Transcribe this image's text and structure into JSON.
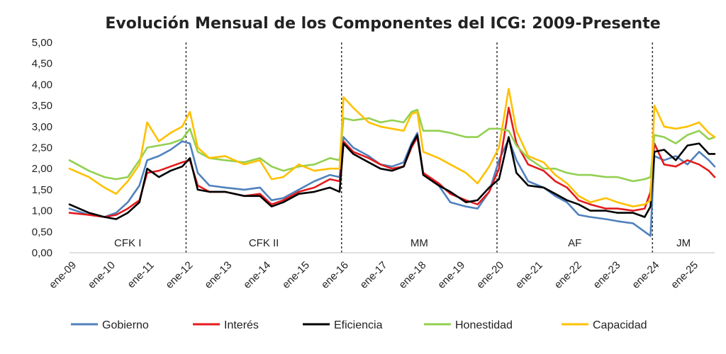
{
  "chart_data": {
    "type": "line",
    "title": "Evolución Mensual de los Componentes del ICG: 2009-Presente",
    "xlabel": "",
    "ylabel": "",
    "ylim": [
      0,
      5
    ],
    "y_ticks": [
      "0,00",
      "0,50",
      "1,00",
      "1,50",
      "2,00",
      "2,50",
      "3,00",
      "3,50",
      "4,00",
      "4,50",
      "5,00"
    ],
    "x_ticks": [
      "ene-09",
      "ene-10",
      "ene-11",
      "ene-12",
      "ene-13",
      "ene-14",
      "ene-15",
      "ene-16",
      "ene-17",
      "ene-18",
      "ene-19",
      "ene-20",
      "ene-21",
      "ene-22",
      "ene-23",
      "ene-24",
      "ene-25"
    ],
    "x_range": [
      2009.0,
      2025.6
    ],
    "grid": false,
    "legend": "bottom",
    "period_dividers": [
      2012.0,
      2016.0,
      2020.0,
      2024.0
    ],
    "periods": [
      {
        "label": "CFK I",
        "center": 2010.5
      },
      {
        "label": "CFK II",
        "center": 2014.0
      },
      {
        "label": "MM",
        "center": 2018.0
      },
      {
        "label": "AF",
        "center": 2022.0
      },
      {
        "label": "JM",
        "center": 2024.8
      }
    ],
    "series": [
      {
        "name": "Gobierno",
        "color": "#4f81bd",
        "points": [
          [
            2009.0,
            1.05
          ],
          [
            2009.5,
            0.9
          ],
          [
            2009.9,
            0.85
          ],
          [
            2010.2,
            0.95
          ],
          [
            2010.5,
            1.2
          ],
          [
            2010.8,
            1.6
          ],
          [
            2011.0,
            2.2
          ],
          [
            2011.3,
            2.3
          ],
          [
            2011.6,
            2.45
          ],
          [
            2011.9,
            2.65
          ],
          [
            2012.1,
            2.6
          ],
          [
            2012.3,
            1.9
          ],
          [
            2012.6,
            1.6
          ],
          [
            2013.0,
            1.55
          ],
          [
            2013.5,
            1.5
          ],
          [
            2013.9,
            1.55
          ],
          [
            2014.2,
            1.25
          ],
          [
            2014.5,
            1.3
          ],
          [
            2014.9,
            1.5
          ],
          [
            2015.3,
            1.7
          ],
          [
            2015.7,
            1.85
          ],
          [
            2015.95,
            1.8
          ],
          [
            2016.05,
            2.75
          ],
          [
            2016.3,
            2.5
          ],
          [
            2016.7,
            2.3
          ],
          [
            2017.0,
            2.1
          ],
          [
            2017.3,
            2.05
          ],
          [
            2017.6,
            2.15
          ],
          [
            2017.8,
            2.6
          ],
          [
            2017.95,
            2.85
          ],
          [
            2018.1,
            1.9
          ],
          [
            2018.5,
            1.6
          ],
          [
            2018.8,
            1.2
          ],
          [
            2019.2,
            1.1
          ],
          [
            2019.5,
            1.05
          ],
          [
            2019.8,
            1.45
          ],
          [
            2020.05,
            2.2
          ],
          [
            2020.3,
            2.7
          ],
          [
            2020.5,
            2.2
          ],
          [
            2020.8,
            1.7
          ],
          [
            2021.2,
            1.55
          ],
          [
            2021.5,
            1.35
          ],
          [
            2021.8,
            1.2
          ],
          [
            2022.1,
            0.9
          ],
          [
            2022.4,
            0.85
          ],
          [
            2022.8,
            0.8
          ],
          [
            2023.1,
            0.75
          ],
          [
            2023.5,
            0.7
          ],
          [
            2023.8,
            0.5
          ],
          [
            2023.95,
            0.4
          ],
          [
            2024.05,
            2.3
          ],
          [
            2024.3,
            2.2
          ],
          [
            2024.6,
            2.3
          ],
          [
            2024.9,
            2.1
          ],
          [
            2025.2,
            2.4
          ],
          [
            2025.45,
            2.2
          ],
          [
            2025.6,
            2.05
          ]
        ]
      },
      {
        "name": "Interés",
        "color": "#e41a1c",
        "points": [
          [
            2009.0,
            0.95
          ],
          [
            2009.5,
            0.9
          ],
          [
            2009.9,
            0.85
          ],
          [
            2010.2,
            0.9
          ],
          [
            2010.5,
            1.05
          ],
          [
            2010.8,
            1.25
          ],
          [
            2011.0,
            1.9
          ],
          [
            2011.3,
            1.95
          ],
          [
            2011.6,
            2.05
          ],
          [
            2011.9,
            2.15
          ],
          [
            2012.1,
            2.2
          ],
          [
            2012.3,
            1.6
          ],
          [
            2012.6,
            1.45
          ],
          [
            2013.0,
            1.45
          ],
          [
            2013.5,
            1.35
          ],
          [
            2013.9,
            1.4
          ],
          [
            2014.2,
            1.15
          ],
          [
            2014.5,
            1.25
          ],
          [
            2014.9,
            1.45
          ],
          [
            2015.3,
            1.55
          ],
          [
            2015.7,
            1.75
          ],
          [
            2015.95,
            1.7
          ],
          [
            2016.05,
            2.65
          ],
          [
            2016.3,
            2.4
          ],
          [
            2016.7,
            2.25
          ],
          [
            2017.0,
            2.1
          ],
          [
            2017.3,
            2.0
          ],
          [
            2017.6,
            2.05
          ],
          [
            2017.8,
            2.5
          ],
          [
            2017.95,
            2.75
          ],
          [
            2018.1,
            1.9
          ],
          [
            2018.5,
            1.65
          ],
          [
            2018.8,
            1.4
          ],
          [
            2019.2,
            1.25
          ],
          [
            2019.5,
            1.15
          ],
          [
            2019.8,
            1.45
          ],
          [
            2020.05,
            2.0
          ],
          [
            2020.3,
            3.45
          ],
          [
            2020.5,
            2.6
          ],
          [
            2020.8,
            2.1
          ],
          [
            2021.2,
            1.95
          ],
          [
            2021.5,
            1.7
          ],
          [
            2021.8,
            1.55
          ],
          [
            2022.1,
            1.25
          ],
          [
            2022.4,
            1.15
          ],
          [
            2022.8,
            1.05
          ],
          [
            2023.1,
            1.05
          ],
          [
            2023.5,
            1.0
          ],
          [
            2023.8,
            1.05
          ],
          [
            2023.95,
            1.45
          ],
          [
            2024.05,
            2.6
          ],
          [
            2024.3,
            2.1
          ],
          [
            2024.6,
            2.05
          ],
          [
            2024.9,
            2.2
          ],
          [
            2025.2,
            2.1
          ],
          [
            2025.45,
            1.95
          ],
          [
            2025.6,
            1.8
          ]
        ]
      },
      {
        "name": "Eficiencia",
        "color": "#000000",
        "points": [
          [
            2009.0,
            1.15
          ],
          [
            2009.5,
            0.95
          ],
          [
            2009.9,
            0.85
          ],
          [
            2010.2,
            0.8
          ],
          [
            2010.5,
            0.95
          ],
          [
            2010.8,
            1.2
          ],
          [
            2011.0,
            2.0
          ],
          [
            2011.3,
            1.8
          ],
          [
            2011.6,
            1.95
          ],
          [
            2011.9,
            2.05
          ],
          [
            2012.1,
            2.25
          ],
          [
            2012.3,
            1.5
          ],
          [
            2012.6,
            1.45
          ],
          [
            2013.0,
            1.45
          ],
          [
            2013.5,
            1.35
          ],
          [
            2013.9,
            1.35
          ],
          [
            2014.2,
            1.1
          ],
          [
            2014.5,
            1.2
          ],
          [
            2014.9,
            1.4
          ],
          [
            2015.3,
            1.45
          ],
          [
            2015.7,
            1.55
          ],
          [
            2015.95,
            1.45
          ],
          [
            2016.05,
            2.6
          ],
          [
            2016.3,
            2.35
          ],
          [
            2016.7,
            2.15
          ],
          [
            2017.0,
            2.0
          ],
          [
            2017.3,
            1.95
          ],
          [
            2017.6,
            2.05
          ],
          [
            2017.8,
            2.55
          ],
          [
            2017.95,
            2.8
          ],
          [
            2018.1,
            1.85
          ],
          [
            2018.5,
            1.6
          ],
          [
            2018.8,
            1.45
          ],
          [
            2019.2,
            1.2
          ],
          [
            2019.5,
            1.25
          ],
          [
            2019.8,
            1.55
          ],
          [
            2020.05,
            1.75
          ],
          [
            2020.3,
            2.75
          ],
          [
            2020.5,
            1.9
          ],
          [
            2020.8,
            1.6
          ],
          [
            2021.2,
            1.55
          ],
          [
            2021.5,
            1.4
          ],
          [
            2021.8,
            1.25
          ],
          [
            2022.1,
            1.15
          ],
          [
            2022.4,
            1.0
          ],
          [
            2022.8,
            1.0
          ],
          [
            2023.1,
            0.95
          ],
          [
            2023.5,
            0.95
          ],
          [
            2023.8,
            0.85
          ],
          [
            2023.95,
            1.1
          ],
          [
            2024.05,
            2.4
          ],
          [
            2024.3,
            2.45
          ],
          [
            2024.6,
            2.2
          ],
          [
            2024.9,
            2.55
          ],
          [
            2025.2,
            2.6
          ],
          [
            2025.45,
            2.35
          ],
          [
            2025.6,
            2.35
          ]
        ]
      },
      {
        "name": "Honestidad",
        "color": "#92d050",
        "points": [
          [
            2009.0,
            2.2
          ],
          [
            2009.5,
            1.95
          ],
          [
            2009.9,
            1.8
          ],
          [
            2010.2,
            1.75
          ],
          [
            2010.5,
            1.8
          ],
          [
            2010.8,
            2.2
          ],
          [
            2011.0,
            2.5
          ],
          [
            2011.3,
            2.55
          ],
          [
            2011.6,
            2.6
          ],
          [
            2011.9,
            2.7
          ],
          [
            2012.1,
            2.95
          ],
          [
            2012.3,
            2.4
          ],
          [
            2012.6,
            2.25
          ],
          [
            2013.0,
            2.2
          ],
          [
            2013.5,
            2.15
          ],
          [
            2013.9,
            2.25
          ],
          [
            2014.2,
            2.05
          ],
          [
            2014.5,
            1.95
          ],
          [
            2014.9,
            2.05
          ],
          [
            2015.3,
            2.1
          ],
          [
            2015.7,
            2.25
          ],
          [
            2015.95,
            2.2
          ],
          [
            2016.05,
            3.2
          ],
          [
            2016.3,
            3.15
          ],
          [
            2016.7,
            3.2
          ],
          [
            2017.0,
            3.1
          ],
          [
            2017.3,
            3.15
          ],
          [
            2017.6,
            3.1
          ],
          [
            2017.8,
            3.35
          ],
          [
            2017.95,
            3.4
          ],
          [
            2018.1,
            2.9
          ],
          [
            2018.5,
            2.9
          ],
          [
            2018.8,
            2.85
          ],
          [
            2019.2,
            2.75
          ],
          [
            2019.5,
            2.75
          ],
          [
            2019.8,
            2.95
          ],
          [
            2020.05,
            2.95
          ],
          [
            2020.3,
            2.9
          ],
          [
            2020.5,
            2.55
          ],
          [
            2020.8,
            2.25
          ],
          [
            2021.2,
            2.0
          ],
          [
            2021.5,
            2.0
          ],
          [
            2021.8,
            1.9
          ],
          [
            2022.1,
            1.85
          ],
          [
            2022.4,
            1.85
          ],
          [
            2022.8,
            1.8
          ],
          [
            2023.1,
            1.8
          ],
          [
            2023.5,
            1.7
          ],
          [
            2023.8,
            1.75
          ],
          [
            2023.95,
            1.8
          ],
          [
            2024.05,
            2.8
          ],
          [
            2024.3,
            2.75
          ],
          [
            2024.6,
            2.6
          ],
          [
            2024.9,
            2.8
          ],
          [
            2025.2,
            2.9
          ],
          [
            2025.45,
            2.7
          ],
          [
            2025.6,
            2.75
          ]
        ]
      },
      {
        "name": "Capacidad",
        "color": "#ffc000",
        "points": [
          [
            2009.0,
            2.0
          ],
          [
            2009.5,
            1.8
          ],
          [
            2009.9,
            1.55
          ],
          [
            2010.2,
            1.4
          ],
          [
            2010.5,
            1.7
          ],
          [
            2010.8,
            2.1
          ],
          [
            2011.0,
            3.1
          ],
          [
            2011.3,
            2.65
          ],
          [
            2011.6,
            2.85
          ],
          [
            2011.9,
            3.0
          ],
          [
            2012.1,
            3.35
          ],
          [
            2012.3,
            2.5
          ],
          [
            2012.6,
            2.25
          ],
          [
            2013.0,
            2.3
          ],
          [
            2013.5,
            2.1
          ],
          [
            2013.9,
            2.2
          ],
          [
            2014.2,
            1.75
          ],
          [
            2014.5,
            1.8
          ],
          [
            2014.9,
            2.1
          ],
          [
            2015.3,
            1.95
          ],
          [
            2015.7,
            2.0
          ],
          [
            2015.95,
            2.0
          ],
          [
            2016.05,
            3.7
          ],
          [
            2016.3,
            3.45
          ],
          [
            2016.7,
            3.1
          ],
          [
            2017.0,
            3.0
          ],
          [
            2017.3,
            2.95
          ],
          [
            2017.6,
            2.9
          ],
          [
            2017.8,
            3.3
          ],
          [
            2017.95,
            3.35
          ],
          [
            2018.1,
            2.4
          ],
          [
            2018.5,
            2.25
          ],
          [
            2018.8,
            2.1
          ],
          [
            2019.2,
            1.9
          ],
          [
            2019.5,
            1.65
          ],
          [
            2019.8,
            2.05
          ],
          [
            2020.05,
            2.5
          ],
          [
            2020.3,
            3.9
          ],
          [
            2020.5,
            2.9
          ],
          [
            2020.8,
            2.3
          ],
          [
            2021.2,
            2.15
          ],
          [
            2021.5,
            1.85
          ],
          [
            2021.8,
            1.65
          ],
          [
            2022.1,
            1.35
          ],
          [
            2022.4,
            1.2
          ],
          [
            2022.8,
            1.3
          ],
          [
            2023.1,
            1.2
          ],
          [
            2023.5,
            1.1
          ],
          [
            2023.8,
            1.15
          ],
          [
            2023.95,
            1.25
          ],
          [
            2024.05,
            3.5
          ],
          [
            2024.3,
            3.0
          ],
          [
            2024.6,
            2.95
          ],
          [
            2024.9,
            3.0
          ],
          [
            2025.2,
            3.1
          ],
          [
            2025.45,
            2.85
          ],
          [
            2025.6,
            2.75
          ]
        ]
      }
    ]
  }
}
